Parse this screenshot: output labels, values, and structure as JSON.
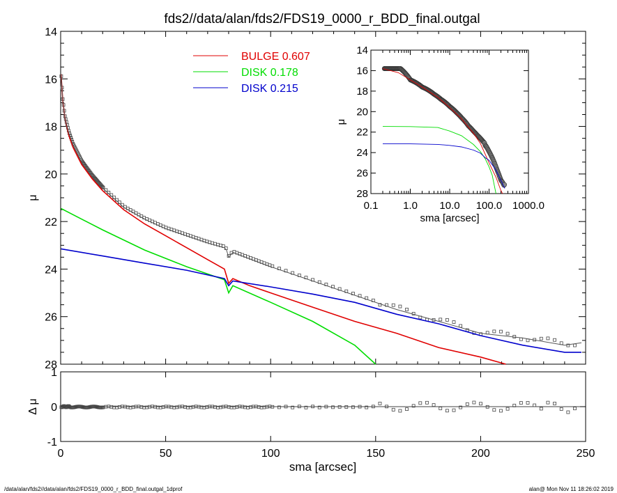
{
  "title": "fds2//data/alan/fds2/FDS19_0000_r_BDD_final.outgal",
  "footer_left": "/data/alan/fds2//data/alan/fds2/FDS19_0000_r_BDD_final.outgal_1dprof",
  "footer_right": "alan@  Mon Nov 11 18:26:02 2019",
  "colors": {
    "bulge": "#e00000",
    "disk1": "#00dd00",
    "disk2": "#0000cc",
    "data": "#444444",
    "model": "#555555"
  },
  "legend": [
    {
      "name": "BULGE",
      "value": "0.607",
      "color": "#e00000"
    },
    {
      "name": "DISK",
      "value": "0.178",
      "color": "#00dd00"
    },
    {
      "name": "DISK",
      "value": "0.215",
      "color": "#0000cc"
    }
  ],
  "chart_data": [
    {
      "id": "main",
      "type": "line",
      "xlabel": "sma [arcsec]",
      "ylabel": "μ",
      "xlim": [
        0,
        250
      ],
      "ylim": [
        28,
        14
      ],
      "x_ticks": [
        "0",
        "50",
        "100",
        "150",
        "200",
        "250"
      ],
      "y_ticks": [
        "14",
        "16",
        "18",
        "20",
        "22",
        "24",
        "26",
        "28"
      ],
      "series": [
        {
          "name": "BULGE",
          "x": [
            0.2,
            1,
            2,
            4,
            6,
            10,
            15,
            20,
            30,
            40,
            50,
            60,
            70,
            78,
            80,
            82,
            90,
            100,
            120,
            140,
            160,
            180,
            200,
            212
          ],
          "y": [
            15.8,
            16.9,
            17.6,
            18.4,
            18.9,
            19.6,
            20.2,
            20.7,
            21.5,
            22.1,
            22.6,
            23.1,
            23.6,
            24.0,
            24.6,
            24.4,
            24.7,
            25.0,
            25.6,
            26.2,
            26.7,
            27.3,
            27.7,
            28.0
          ]
        },
        {
          "name": "DISK",
          "x": [
            0.2,
            10,
            20,
            40,
            60,
            78,
            80,
            82,
            100,
            120,
            140,
            150
          ],
          "y": [
            21.45,
            21.9,
            22.35,
            23.2,
            23.9,
            24.45,
            25.0,
            24.7,
            25.4,
            26.2,
            27.2,
            28.0
          ]
        },
        {
          "name": "DISK",
          "x": [
            0.2,
            20,
            40,
            60,
            78,
            80,
            82,
            100,
            120,
            140,
            160,
            180,
            200,
            220,
            240,
            248
          ],
          "y": [
            23.15,
            23.45,
            23.75,
            24.05,
            24.4,
            24.7,
            24.5,
            24.75,
            25.05,
            25.4,
            25.9,
            26.3,
            26.8,
            27.2,
            27.5,
            27.5
          ]
        },
        {
          "name": "",
          "x": [
            0.2,
            1,
            2,
            4,
            6,
            10,
            15,
            20,
            30,
            40,
            50,
            60,
            70,
            78,
            79,
            80,
            82,
            100,
            120,
            140,
            160,
            180,
            200,
            220,
            240,
            248
          ],
          "y": [
            15.8,
            16.9,
            17.6,
            18.3,
            18.8,
            19.5,
            20.1,
            20.6,
            21.4,
            21.9,
            22.3,
            22.6,
            22.9,
            23.1,
            23.2,
            23.5,
            23.3,
            23.9,
            24.5,
            25.1,
            25.7,
            26.2,
            26.7,
            26.9,
            27.2,
            27.1
          ]
        }
      ]
    },
    {
      "id": "residual",
      "type": "scatter",
      "xlabel": "sma [arcsec]",
      "ylabel": "Δ μ",
      "xlim": [
        0,
        250
      ],
      "ylim": [
        -1,
        1
      ],
      "x_ticks": [
        "0",
        "50",
        "100",
        "150",
        "200",
        "250"
      ],
      "y_ticks": [
        "1",
        "0",
        "-1"
      ]
    },
    {
      "id": "inset",
      "type": "line",
      "xscale": "log",
      "xlabel": "sma [arcsec]",
      "ylabel": "μ",
      "xlim": [
        0.1,
        1000
      ],
      "ylim": [
        28,
        14
      ],
      "x_ticks": [
        "0.1",
        "1.0",
        "10.0",
        "100.0",
        "1000.0"
      ],
      "y_ticks": [
        "14",
        "16",
        "18",
        "20",
        "22",
        "24",
        "26",
        "28"
      ],
      "series": [
        {
          "name": "BULGE",
          "x": [
            0.2,
            0.5,
            1,
            2,
            5,
            10,
            20,
            40,
            60,
            100,
            150,
            200,
            220
          ],
          "y": [
            15.8,
            16.2,
            16.9,
            17.6,
            18.6,
            19.6,
            20.7,
            22.1,
            23.1,
            25.0,
            26.4,
            27.7,
            28.0
          ]
        },
        {
          "name": "DISK",
          "x": [
            0.2,
            1,
            5,
            10,
            20,
            40,
            60,
            80,
            100,
            120,
            150
          ],
          "y": [
            21.45,
            21.46,
            21.55,
            21.9,
            22.35,
            23.2,
            23.9,
            24.6,
            25.4,
            26.2,
            28.0
          ]
        },
        {
          "name": "DISK",
          "x": [
            0.2,
            1,
            5,
            10,
            20,
            40,
            60,
            80,
            100,
            150,
            200,
            250
          ],
          "y": [
            23.15,
            23.15,
            23.2,
            23.3,
            23.45,
            23.75,
            24.05,
            24.5,
            24.75,
            25.7,
            26.7,
            27.5
          ]
        }
      ]
    }
  ]
}
